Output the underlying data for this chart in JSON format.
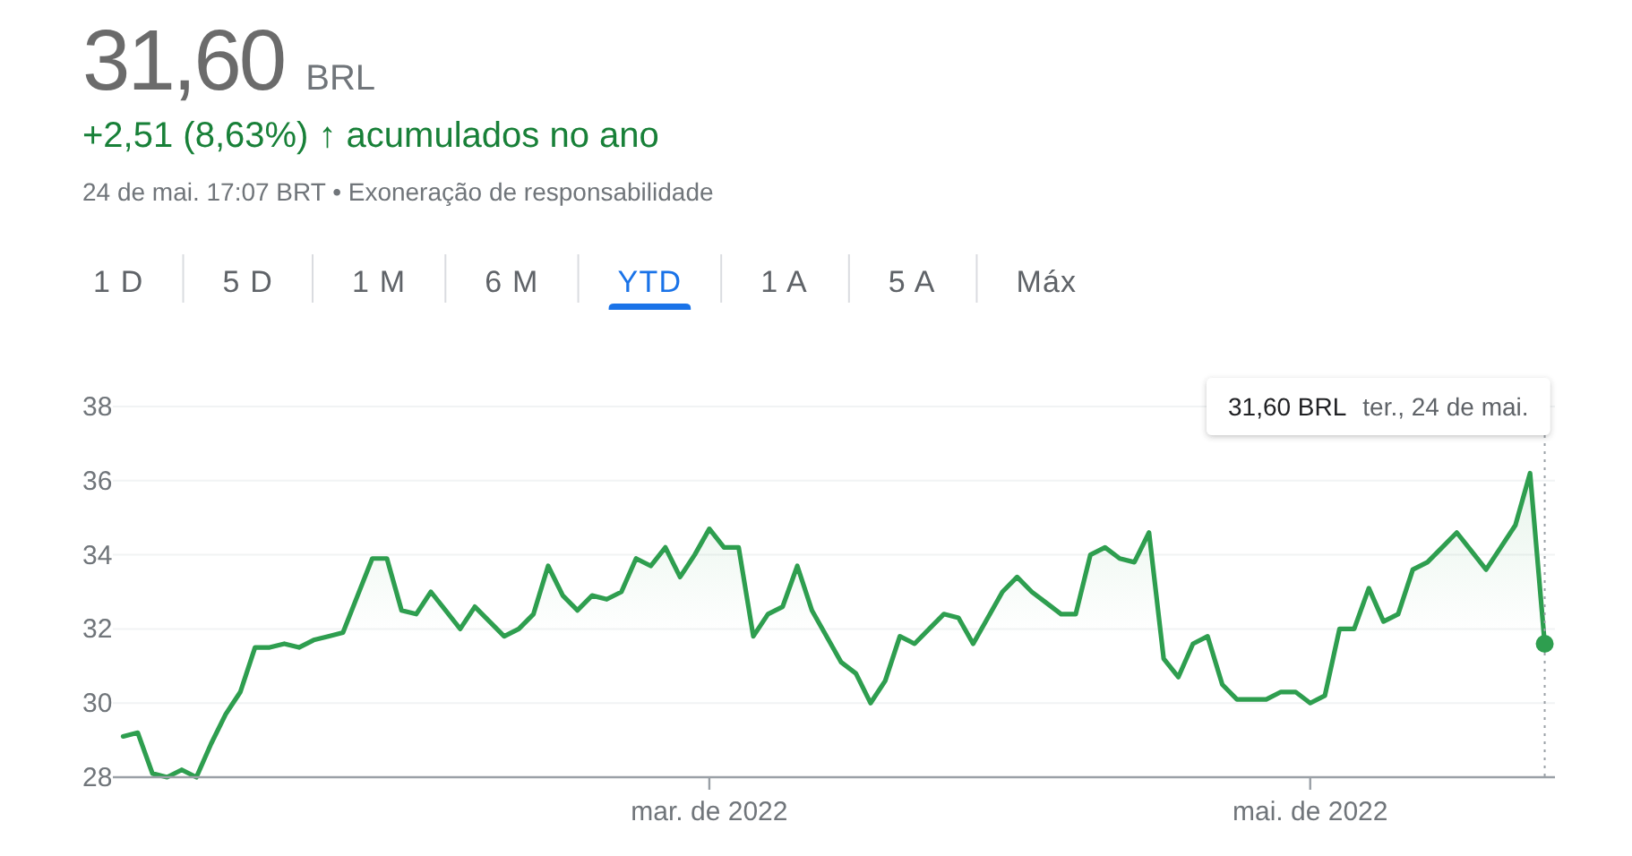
{
  "chart_data": {
    "type": "area",
    "title": "31,60 BRL",
    "subtitle": "+2,51 (8,63%) ↑ acumulados no ano",
    "annotations": [
      "24 de mai. 17:07 BRT • Exoneração de responsabilidade",
      "1 D",
      "5 D",
      "1 M",
      "6 M",
      "YTD",
      "1 A",
      "5 A",
      "Máx",
      "31,60 BRL",
      "ter., 24 de mai."
    ],
    "categories": [
      null,
      null,
      null,
      null,
      null,
      null,
      null,
      null,
      null,
      null,
      null,
      null,
      null,
      null,
      null,
      null,
      null,
      null,
      null,
      null,
      null,
      null,
      null,
      null,
      null,
      null,
      null,
      null,
      null,
      null,
      null,
      null,
      null,
      null,
      null,
      null,
      null,
      null,
      null,
      null,
      "mar. de 2022",
      null,
      null,
      null,
      null,
      null,
      null,
      null,
      null,
      null,
      null,
      null,
      null,
      null,
      null,
      null,
      null,
      null,
      null,
      null,
      null,
      null,
      null,
      null,
      null,
      null,
      null,
      null,
      null,
      null,
      null,
      null,
      null,
      null,
      null,
      null,
      null,
      null,
      null,
      null,
      null,
      "mai. de 2022",
      null,
      null,
      null,
      null,
      null,
      null,
      null,
      null,
      null,
      null,
      null,
      null,
      null,
      null,
      null,
      null
    ],
    "values": [
      29.1,
      29.2,
      28.1,
      28.0,
      28.2,
      28.0,
      28.9,
      29.7,
      30.3,
      31.5,
      31.5,
      31.6,
      31.5,
      31.7,
      31.8,
      31.9,
      32.9,
      33.9,
      33.9,
      32.5,
      32.4,
      33.0,
      32.5,
      32.0,
      32.6,
      32.2,
      31.8,
      32.0,
      32.4,
      33.7,
      32.9,
      32.5,
      32.9,
      32.8,
      33.0,
      33.9,
      33.7,
      34.2,
      33.4,
      34.0,
      34.7,
      34.2,
      34.2,
      31.8,
      32.4,
      32.6,
      33.7,
      32.5,
      31.8,
      31.1,
      30.8,
      30.0,
      30.6,
      31.8,
      31.6,
      32.0,
      32.4,
      32.3,
      31.6,
      32.3,
      33.0,
      33.4,
      33.0,
      32.7,
      32.4,
      32.4,
      34.0,
      34.2,
      33.9,
      33.8,
      34.6,
      31.2,
      30.7,
      31.6,
      31.8,
      30.5,
      30.1,
      30.1,
      30.1,
      30.3,
      30.3,
      30.0,
      30.2,
      32.0,
      32.0,
      33.1,
      32.2,
      32.4,
      33.6,
      33.8,
      34.2,
      34.6,
      34.1,
      33.6,
      34.2,
      34.8,
      36.2,
      31.6
    ],
    "color": "#2e9e4f",
    "ylim": [
      28,
      38
    ],
    "yticks": [
      28,
      30,
      32,
      34,
      36,
      38
    ],
    "grid": "y"
  }
}
